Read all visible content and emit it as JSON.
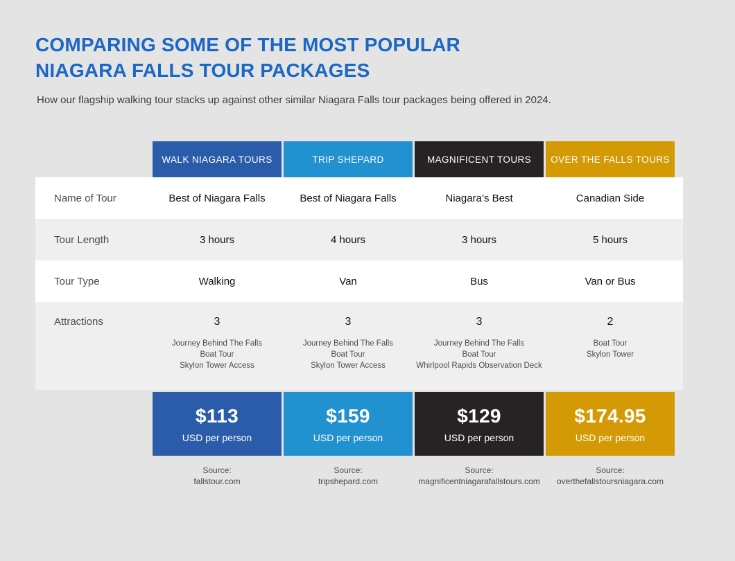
{
  "header": {
    "title_line1": "COMPARING SOME OF THE MOST POPULAR",
    "title_line2": "NIAGARA FALLS TOUR PACKAGES",
    "subtitle": "How our flagship walking tour stacks up against other similar Niagara Falls tour packages being offered in 2024."
  },
  "colors": {
    "title_blue": "#1a67c5",
    "page_background": "#e4e4e4",
    "row_stripe": "#f0efef",
    "walk_niagara_blue": "#2b5caa",
    "trip_shepard_blue": "#2191cf",
    "magnificent_black": "#272324",
    "over_the_falls_gold": "#d49a06"
  },
  "chart_data": {
    "type": "table",
    "title": "COMPARING SOME OF THE MOST POPULAR NIAGARA FALLS TOUR PACKAGES",
    "subtitle": "How our flagship walking tour stacks up against other similar Niagara Falls tour packages being offered in 2024.",
    "row_headers": [
      "Name of Tour",
      "Tour Length",
      "Tour Type",
      "Attractions"
    ],
    "columns": [
      {
        "header": "WALK NIAGARA TOURS",
        "brand_color": "#2b5caa",
        "name_of_tour": "Best of Niagara Falls",
        "tour_length": "3 hours",
        "tour_type": "Walking",
        "attractions_count": "3",
        "attractions": [
          "Journey Behind The Falls",
          "Boat Tour",
          "Skylon Tower Access"
        ],
        "price": "$113",
        "price_unit": "USD per person",
        "source_label": "Source:",
        "source": "fallstour.com"
      },
      {
        "header": "TRIP SHEPARD",
        "brand_color": "#2191cf",
        "name_of_tour": "Best of Niagara Falls",
        "tour_length": "4 hours",
        "tour_type": "Van",
        "attractions_count": "3",
        "attractions": [
          "Journey Behind The Falls",
          "Boat Tour",
          "Skylon Tower Access"
        ],
        "price": "$159",
        "price_unit": "USD per person",
        "source_label": "Source:",
        "source": "tripshepard.com"
      },
      {
        "header": "MAGNIFICENT TOURS",
        "brand_color": "#272324",
        "name_of_tour": "Niagara’s Best",
        "tour_length": "3 hours",
        "tour_type": "Bus",
        "attractions_count": "3",
        "attractions": [
          "Journey Behind The Falls",
          "Boat Tour",
          "Whirlpool Rapids Observation Deck"
        ],
        "price": "$129",
        "price_unit": "USD per person",
        "source_label": "Source:",
        "source": "magnificentniagarafallstours.com"
      },
      {
        "header": "OVER THE FALLS TOURS",
        "brand_color": "#d49a06",
        "name_of_tour": "Canadian Side",
        "tour_length": "5 hours",
        "tour_type": "Van or Bus",
        "attractions_count": "2",
        "attractions": [
          "Boat Tour",
          "Skylon Tower"
        ],
        "price": "$174.95",
        "price_unit": "USD per person",
        "source_label": "Source:",
        "source": "overthefallstoursniagara.com"
      }
    ]
  }
}
